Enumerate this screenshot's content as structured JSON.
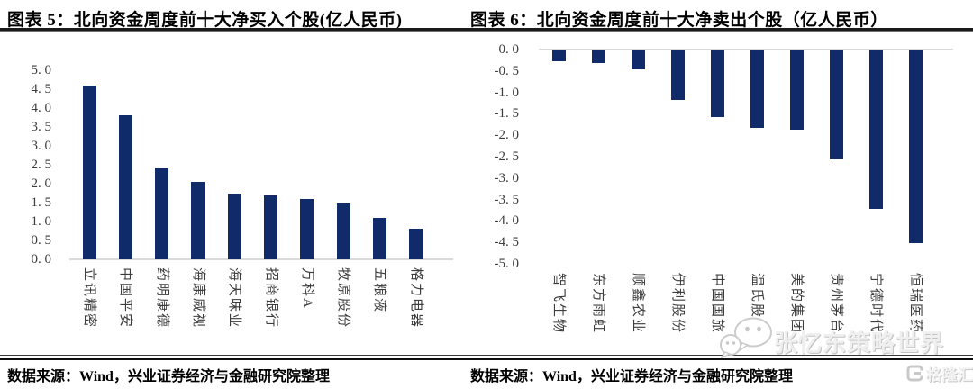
{
  "page": {
    "background_color": "#ffffff",
    "bar_color": "#112b6a",
    "axis_line_color": "#d9d9d9",
    "watermark_color": "#cccccc"
  },
  "chart_data": [
    {
      "type": "bar",
      "title": "图表 5：北向资金周度前十大净买入个股(亿人民币)",
      "categories": [
        "立讯精密",
        "中国平安",
        "药明康德",
        "海康威视",
        "海天味业",
        "招商银行",
        "万科A",
        "牧原股份",
        "五粮液",
        "格力电器"
      ],
      "values": [
        4.6,
        3.8,
        2.4,
        2.05,
        1.75,
        1.7,
        1.6,
        1.5,
        1.1,
        0.8
      ],
      "xlabel": "",
      "ylabel": "",
      "ylim": [
        0,
        5
      ],
      "ytick_step": 0.5,
      "ytick_labels": [
        "5. 0",
        "4. 5",
        "4. 0",
        "3. 5",
        "3. 0",
        "2. 5",
        "2. 0",
        "1. 5",
        "1. 0",
        "0. 5",
        "0. 0"
      ],
      "grid": false,
      "legend": null,
      "bar_color": "#112b6a",
      "axis_line_color": "#d9d9d9"
    },
    {
      "type": "bar",
      "title": "图表 6：北向资金周度前十大净卖出个股（亿人民币）",
      "categories": [
        "智飞生物",
        "东方雨虹",
        "顺鑫农业",
        "伊利股份",
        "中国国旅",
        "温氏股份",
        "美的集团",
        "贵州茅台",
        "宁德时代",
        "恒瑞医药"
      ],
      "values": [
        -0.25,
        -0.3,
        -0.45,
        -1.15,
        -1.55,
        -1.8,
        -1.85,
        -2.55,
        -3.7,
        -4.5
      ],
      "xlabel": "",
      "ylabel": "",
      "ylim": [
        -5,
        0
      ],
      "ytick_step": 0.5,
      "ytick_labels": [
        "0. 0",
        "-0. 5",
        "-1. 0",
        "-1. 5",
        "-2. 0",
        "-2. 5",
        "-3. 0",
        "-3. 5",
        "-4. 0",
        "-4. 5",
        "-5. 0"
      ],
      "grid": false,
      "legend": null,
      "bar_color": "#112b6a",
      "axis_line_color": "#d9d9d9"
    }
  ],
  "footer": {
    "left_source": "数据来源：Wind，兴业证券经济与金融研究院整理",
    "right_source": "数据来源：Wind，兴业证券经济与金融研究院整理"
  },
  "watermarks": {
    "wechat_text": "张忆东策略世界",
    "wechat_icon": "wechat-icon",
    "logo_text": "格隆汇",
    "logo_icon": "gelonghui-g-icon"
  }
}
